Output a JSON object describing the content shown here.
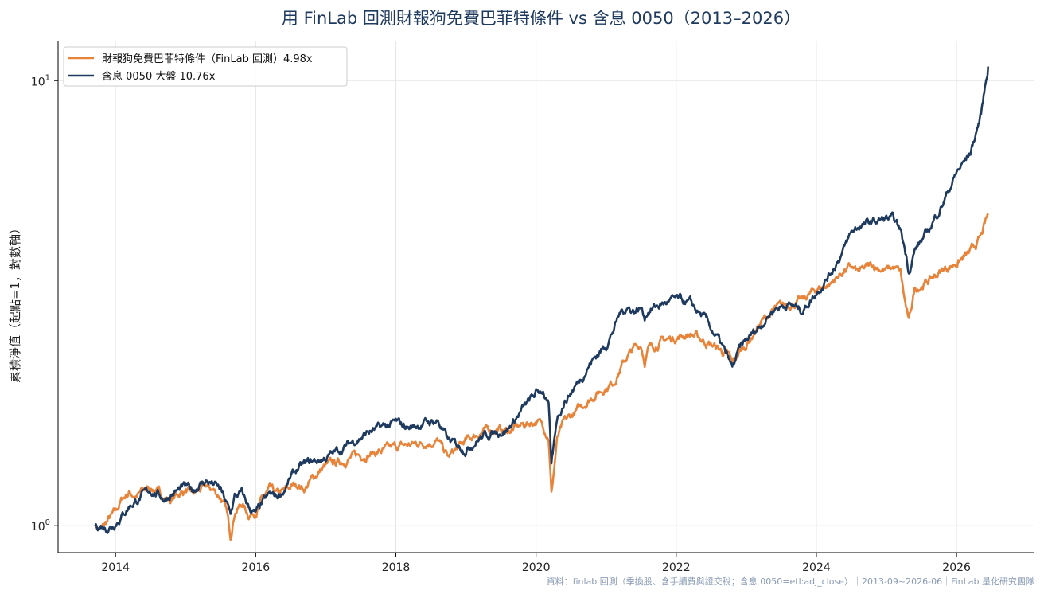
{
  "chart_data": {
    "type": "line",
    "title": "用 FinLab 回測財報狗免費巴菲特條件 vs 含息 0050（2013–2026）",
    "ylabel": "累積淨值（起點=1，對數軸）",
    "xlabel": "",
    "y_scale": "log",
    "ylim": [
      0.87,
      12.3
    ],
    "xlim": [
      2013.18,
      2027.1
    ],
    "x_ticks": [
      2014,
      2016,
      2018,
      2020,
      2022,
      2024,
      2026
    ],
    "x_tick_labels": [
      "2014",
      "2016",
      "2018",
      "2020",
      "2022",
      "2024",
      "2026"
    ],
    "y_ticks": [
      {
        "value": 1,
        "label": "10",
        "sup": "0"
      },
      {
        "value": 10,
        "label": "10",
        "sup": "1"
      }
    ],
    "grid": true,
    "legend_position": "top-left",
    "series": [
      {
        "name": "財報狗免費巴菲特條件（FinLab 回測）4.98x",
        "color": "#e8833a",
        "x": [
          2013.71,
          2013.8,
          2013.9,
          2014.0,
          2014.1,
          2014.2,
          2014.3,
          2014.4,
          2014.5,
          2014.6,
          2014.7,
          2014.8,
          2014.9,
          2015.0,
          2015.1,
          2015.2,
          2015.3,
          2015.4,
          2015.5,
          2015.58,
          2015.64,
          2015.7,
          2015.8,
          2015.9,
          2016.0,
          2016.1,
          2016.2,
          2016.3,
          2016.4,
          2016.5,
          2016.6,
          2016.7,
          2016.8,
          2016.9,
          2017.0,
          2017.2,
          2017.4,
          2017.6,
          2017.8,
          2018.0,
          2018.2,
          2018.4,
          2018.6,
          2018.75,
          2018.8,
          2018.9,
          2019.0,
          2019.2,
          2019.4,
          2019.6,
          2019.8,
          2020.0,
          2020.1,
          2020.18,
          2020.22,
          2020.3,
          2020.4,
          2020.6,
          2020.8,
          2021.0,
          2021.1,
          2021.2,
          2021.3,
          2021.4,
          2021.5,
          2021.55,
          2021.6,
          2021.8,
          2022.0,
          2022.2,
          2022.4,
          2022.6,
          2022.75,
          2022.8,
          2022.9,
          2023.0,
          2023.2,
          2023.4,
          2023.6,
          2023.8,
          2024.0,
          2024.2,
          2024.4,
          2024.5,
          2024.6,
          2024.8,
          2025.0,
          2025.1,
          2025.2,
          2025.26,
          2025.32,
          2025.4,
          2025.6,
          2025.8,
          2026.0,
          2026.2,
          2026.35,
          2026.45
        ],
        "y": [
          1.0,
          0.98,
          1.03,
          1.07,
          1.15,
          1.19,
          1.16,
          1.2,
          1.22,
          1.19,
          1.16,
          1.14,
          1.18,
          1.2,
          1.17,
          1.2,
          1.22,
          1.2,
          1.16,
          1.08,
          0.95,
          1.08,
          1.12,
          1.06,
          1.08,
          1.15,
          1.2,
          1.17,
          1.19,
          1.22,
          1.24,
          1.21,
          1.27,
          1.32,
          1.36,
          1.39,
          1.43,
          1.45,
          1.47,
          1.5,
          1.52,
          1.54,
          1.55,
          1.42,
          1.45,
          1.5,
          1.55,
          1.62,
          1.65,
          1.63,
          1.68,
          1.72,
          1.68,
          1.59,
          1.18,
          1.56,
          1.7,
          1.82,
          1.95,
          2.05,
          2.1,
          2.25,
          2.4,
          2.5,
          2.55,
          2.35,
          2.5,
          2.6,
          2.65,
          2.7,
          2.6,
          2.5,
          2.4,
          2.3,
          2.45,
          2.55,
          2.85,
          3.05,
          3.15,
          3.2,
          3.4,
          3.5,
          3.75,
          3.8,
          3.7,
          3.85,
          3.75,
          3.8,
          3.7,
          3.2,
          2.85,
          3.4,
          3.55,
          3.75,
          3.9,
          4.1,
          4.45,
          4.98
        ]
      },
      {
        "name": "含息 0050 大盤 10.76x",
        "color": "#1f3a5f",
        "x": [
          2013.71,
          2013.8,
          2013.9,
          2014.0,
          2014.1,
          2014.2,
          2014.3,
          2014.4,
          2014.5,
          2014.6,
          2014.7,
          2014.8,
          2014.9,
          2015.0,
          2015.1,
          2015.2,
          2015.3,
          2015.4,
          2015.5,
          2015.58,
          2015.64,
          2015.7,
          2015.8,
          2015.9,
          2016.0,
          2016.1,
          2016.2,
          2016.3,
          2016.4,
          2016.5,
          2016.6,
          2016.7,
          2016.8,
          2016.9,
          2017.0,
          2017.2,
          2017.4,
          2017.6,
          2017.8,
          2018.0,
          2018.2,
          2018.4,
          2018.6,
          2018.75,
          2018.85,
          2019.0,
          2019.2,
          2019.4,
          2019.6,
          2019.8,
          2020.0,
          2020.1,
          2020.18,
          2020.22,
          2020.3,
          2020.4,
          2020.6,
          2020.8,
          2021.0,
          2021.1,
          2021.2,
          2021.3,
          2021.4,
          2021.5,
          2021.55,
          2021.6,
          2021.8,
          2022.0,
          2022.2,
          2022.4,
          2022.6,
          2022.75,
          2022.8,
          2022.9,
          2023.0,
          2023.2,
          2023.4,
          2023.6,
          2023.8,
          2024.0,
          2024.2,
          2024.4,
          2024.5,
          2024.6,
          2024.8,
          2025.0,
          2025.1,
          2025.2,
          2025.26,
          2025.32,
          2025.4,
          2025.6,
          2025.8,
          2026.0,
          2026.2,
          2026.35,
          2026.45
        ],
        "y": [
          1.0,
          1.0,
          0.99,
          1.02,
          1.06,
          1.11,
          1.14,
          1.17,
          1.2,
          1.18,
          1.15,
          1.18,
          1.2,
          1.22,
          1.2,
          1.24,
          1.26,
          1.24,
          1.2,
          1.12,
          1.06,
          1.16,
          1.18,
          1.1,
          1.06,
          1.12,
          1.17,
          1.16,
          1.2,
          1.28,
          1.34,
          1.37,
          1.39,
          1.4,
          1.42,
          1.48,
          1.55,
          1.62,
          1.66,
          1.7,
          1.66,
          1.7,
          1.72,
          1.55,
          1.52,
          1.49,
          1.58,
          1.62,
          1.65,
          1.82,
          1.98,
          2.02,
          1.85,
          1.35,
          1.75,
          1.9,
          2.1,
          2.35,
          2.55,
          2.75,
          3.0,
          3.1,
          3.05,
          3.08,
          2.95,
          3.05,
          3.15,
          3.22,
          3.15,
          2.92,
          2.62,
          2.35,
          2.25,
          2.48,
          2.6,
          2.82,
          3.08,
          3.15,
          3.05,
          3.35,
          3.7,
          4.2,
          4.55,
          4.7,
          4.8,
          4.9,
          4.85,
          4.6,
          4.2,
          3.75,
          4.15,
          4.6,
          5.3,
          6.2,
          6.9,
          8.4,
          10.76
        ]
      }
    ],
    "footer": "資料：finlab 回測（季換股、含手續費與證交稅；含息 0050=etl:adj_close）｜2013-09~2026-06｜FinLab 量化研究團隊"
  }
}
